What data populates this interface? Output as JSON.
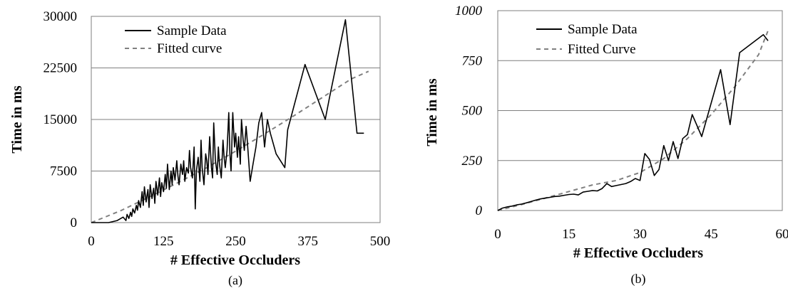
{
  "chart_data": [
    {
      "type": "line",
      "caption": "(a)",
      "xlabel": "# Effective Occluders",
      "ylabel": "Time in ms",
      "xlim": [
        0,
        500
      ],
      "ylim": [
        0,
        30000
      ],
      "x_ticks": [
        "0",
        "125",
        "250",
        "375",
        "500"
      ],
      "y_ticks": [
        "0",
        "7500",
        "15000",
        "22500",
        "30000"
      ],
      "grid": "horizontal",
      "legend_position": "top-left",
      "legend": [
        "Sample Data",
        "Fitted curve"
      ],
      "series": [
        {
          "name": "Sample Data",
          "style": "solid",
          "color": "#000000",
          "x": [
            0,
            30,
            45,
            55,
            60,
            62,
            65,
            68,
            70,
            72,
            75,
            78,
            80,
            82,
            85,
            88,
            90,
            92,
            95,
            98,
            100,
            102,
            105,
            108,
            110,
            112,
            115,
            118,
            120,
            122,
            125,
            128,
            130,
            132,
            135,
            138,
            140,
            142,
            145,
            148,
            150,
            152,
            155,
            158,
            160,
            162,
            165,
            168,
            170,
            172,
            175,
            178,
            180,
            182,
            185,
            188,
            190,
            192,
            195,
            198,
            200,
            202,
            205,
            208,
            210,
            212,
            215,
            218,
            220,
            222,
            225,
            228,
            230,
            232,
            235,
            238,
            240,
            242,
            245,
            248,
            250,
            253,
            255,
            258,
            260,
            263,
            265,
            268,
            270,
            275,
            280,
            285,
            290,
            295,
            300,
            305,
            310,
            320,
            335,
            340,
            370,
            405,
            412,
            440,
            460,
            472
          ],
          "values": [
            0,
            0,
            300,
            800,
            300,
            1200,
            600,
            1500,
            900,
            2000,
            1400,
            2500,
            1800,
            3200,
            2200,
            4500,
            2500,
            5200,
            3000,
            4800,
            2200,
            5500,
            3500,
            5000,
            2800,
            6000,
            4000,
            6500,
            3800,
            5800,
            4500,
            7000,
            5000,
            8500,
            4800,
            7500,
            5500,
            8000,
            6200,
            9000,
            6800,
            5500,
            8500,
            7000,
            9000,
            6000,
            8000,
            7200,
            10500,
            8000,
            6500,
            11000,
            2000,
            7500,
            9500,
            6000,
            12000,
            8000,
            5500,
            10000,
            9000,
            7000,
            12500,
            8000,
            6500,
            14500,
            9000,
            7000,
            11000,
            8500,
            6500,
            12000,
            9500,
            8000,
            10500,
            16000,
            10000,
            7500,
            16000,
            11000,
            13000,
            9500,
            12500,
            8500,
            15000,
            12000,
            10500,
            14000,
            12000,
            6000,
            8500,
            11000,
            14500,
            16000,
            11000,
            15000,
            13000,
            10000,
            8000,
            13500,
            23000,
            15000,
            18000,
            29500,
            13000,
            13000
          ],
          "fitted_note": ""
        },
        {
          "name": "Fitted curve",
          "style": "dashed",
          "color": "#808080",
          "x": [
            0,
            50,
            100,
            150,
            200,
            250,
            300,
            350,
            400,
            450,
            480
          ],
          "values": [
            0,
            1700,
            3700,
            5800,
            8000,
            10400,
            12900,
            15500,
            18200,
            20900,
            22000
          ]
        }
      ]
    },
    {
      "type": "line",
      "caption": "(b)",
      "xlabel": "# Effective Occluders",
      "ylabel": "Time in ms",
      "xlim": [
        0,
        60
      ],
      "ylim": [
        0,
        1000
      ],
      "x_ticks": [
        "0",
        "15",
        "30",
        "45",
        "60"
      ],
      "y_ticks": [
        "0",
        "250",
        "500",
        "750",
        "1000"
      ],
      "grid": "horizontal",
      "legend_position": "top-left",
      "legend": [
        "Sample Data",
        "Fitted Curve"
      ],
      "series": [
        {
          "name": "Sample Data",
          "style": "solid",
          "color": "#000000",
          "x": [
            0,
            1,
            2,
            3,
            4,
            5,
            6,
            7,
            8,
            9,
            10,
            11,
            12,
            13,
            14,
            15,
            16,
            17,
            18,
            19,
            20,
            21,
            22,
            23,
            24,
            25,
            26,
            27,
            28,
            29,
            30,
            31,
            32,
            33,
            34,
            35,
            36,
            37,
            38,
            39,
            40,
            41,
            43,
            47,
            49,
            51,
            56,
            57
          ],
          "values": [
            0,
            12,
            18,
            22,
            28,
            32,
            38,
            45,
            52,
            58,
            62,
            66,
            70,
            72,
            76,
            80,
            82,
            78,
            92,
            96,
            100,
            98,
            110,
            135,
            120,
            125,
            130,
            135,
            145,
            160,
            150,
            285,
            255,
            175,
            205,
            325,
            250,
            345,
            260,
            360,
            380,
            480,
            370,
            705,
            430,
            790,
            880,
            850
          ],
          "fitted_note": ""
        },
        {
          "name": "Fitted Curve",
          "style": "dashed",
          "color": "#808080",
          "x": [
            0,
            5,
            10,
            15,
            20,
            25,
            30,
            35,
            40,
            45,
            50,
            55,
            57
          ],
          "values": [
            0,
            30,
            62,
            95,
            128,
            150,
            190,
            260,
            360,
            480,
            620,
            780,
            900
          ]
        }
      ]
    }
  ]
}
